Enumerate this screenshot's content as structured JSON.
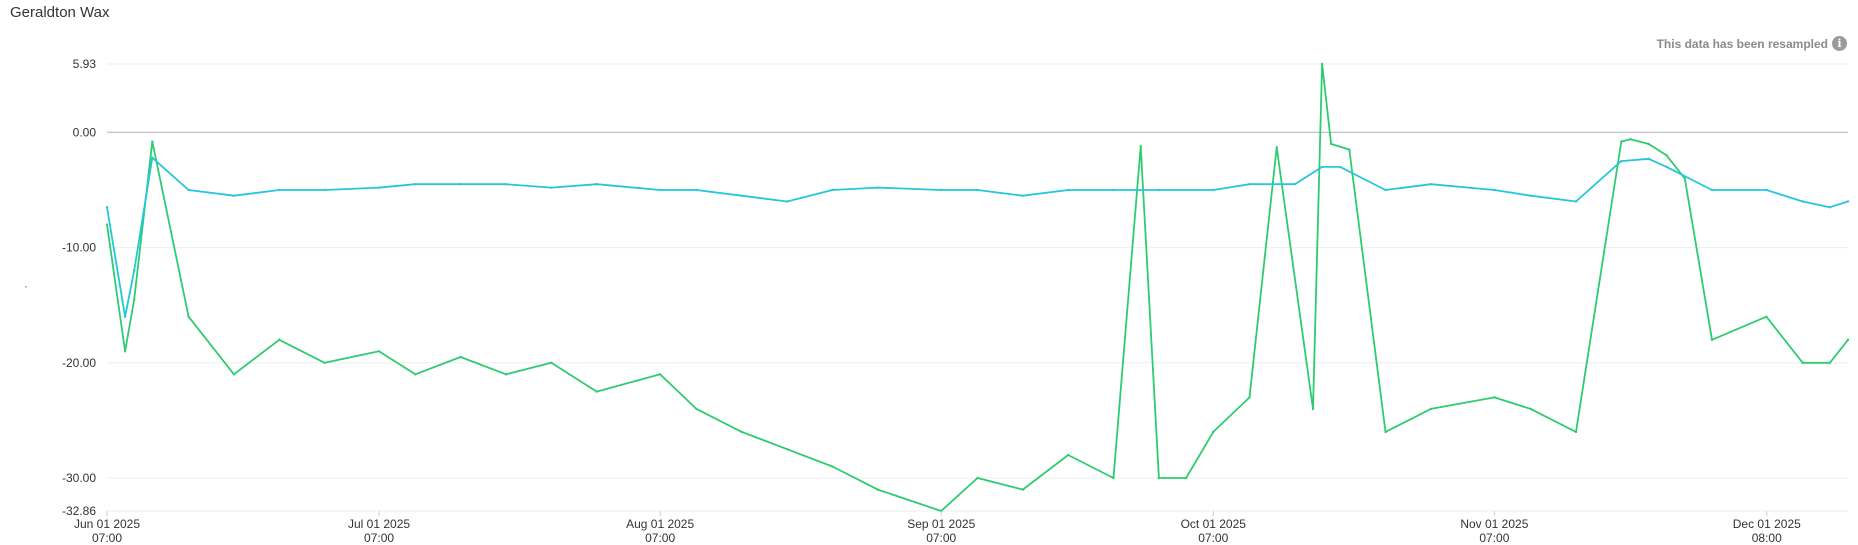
{
  "title": "Geraldton Wax",
  "resample_note": "This data has been resampled",
  "icons": {
    "info": "info-icon"
  },
  "colors": {
    "series_green": "#2ecc71",
    "series_cyan": "#26c6da",
    "zero_line": "#c8c8c8",
    "grid": "#eeeeee"
  },
  "chart_data": {
    "type": "line",
    "title": "Geraldton Wax",
    "xlabel": "",
    "ylabel": "",
    "x_range": [
      "2025-06-01T07:00",
      "2025-12-10T07:00"
    ],
    "ylim": [
      -32.86,
      5.93
    ],
    "y_ticks": [
      "5.93",
      "0.00",
      "-10.00",
      "-20.00",
      "-30.00",
      "-32.86"
    ],
    "x_ticks": [
      {
        "date": "Jun 01 2025",
        "time": "07:00"
      },
      {
        "date": "Jul 01 2025",
        "time": "07:00"
      },
      {
        "date": "Aug 01 2025",
        "time": "07:00"
      },
      {
        "date": "Sep 01 2025",
        "time": "07:00"
      },
      {
        "date": "Oct 01 2025",
        "time": "07:00"
      },
      {
        "date": "Nov 01 2025",
        "time": "07:00"
      },
      {
        "date": "Dec 01 2025",
        "time": "08:00"
      }
    ],
    "grid": true,
    "series": [
      {
        "color": "#2ecc71",
        "x": [
          "2025-06-01",
          "2025-06-03",
          "2025-06-04",
          "2025-06-06",
          "2025-06-10",
          "2025-06-15",
          "2025-06-20",
          "2025-06-25",
          "2025-07-01",
          "2025-07-05",
          "2025-07-10",
          "2025-07-15",
          "2025-07-20",
          "2025-07-25",
          "2025-08-01",
          "2025-08-05",
          "2025-08-10",
          "2025-08-15",
          "2025-08-20",
          "2025-08-25",
          "2025-09-01",
          "2025-09-05",
          "2025-09-10",
          "2025-09-15",
          "2025-09-20",
          "2025-09-23",
          "2025-09-25",
          "2025-09-28",
          "2025-10-01",
          "2025-10-05",
          "2025-10-08",
          "2025-10-12",
          "2025-10-13",
          "2025-10-14",
          "2025-10-16",
          "2025-10-20",
          "2025-10-25",
          "2025-11-01",
          "2025-11-05",
          "2025-11-10",
          "2025-11-15",
          "2025-11-16",
          "2025-11-18",
          "2025-11-20",
          "2025-11-22",
          "2025-11-25",
          "2025-12-01",
          "2025-12-05",
          "2025-12-08",
          "2025-12-10"
        ],
        "values": [
          -8.0,
          -19.0,
          -14.5,
          -0.8,
          -16.0,
          -21.0,
          -18.0,
          -20.0,
          -19.0,
          -21.0,
          -19.5,
          -21.0,
          -20.0,
          -22.5,
          -21.0,
          -24.0,
          -26.0,
          -27.5,
          -29.0,
          -31.0,
          -32.86,
          -30.0,
          -31.0,
          -28.0,
          -30.0,
          -1.2,
          -30.0,
          -30.0,
          -26.0,
          -23.0,
          -1.3,
          -24.0,
          5.93,
          -1.0,
          -1.5,
          -26.0,
          -24.0,
          -23.0,
          -24.0,
          -26.0,
          -0.8,
          -0.6,
          -1.0,
          -2.0,
          -4.0,
          -18.0,
          -16.0,
          -20.0,
          -20.0,
          -18.0
        ]
      },
      {
        "color": "#26c6da",
        "x": [
          "2025-06-01",
          "2025-06-03",
          "2025-06-04",
          "2025-06-06",
          "2025-06-10",
          "2025-06-15",
          "2025-06-20",
          "2025-06-25",
          "2025-07-01",
          "2025-07-05",
          "2025-07-10",
          "2025-07-15",
          "2025-07-20",
          "2025-07-25",
          "2025-08-01",
          "2025-08-05",
          "2025-08-10",
          "2025-08-15",
          "2025-08-20",
          "2025-08-25",
          "2025-09-01",
          "2025-09-05",
          "2025-09-10",
          "2025-09-15",
          "2025-09-20",
          "2025-09-25",
          "2025-10-01",
          "2025-10-05",
          "2025-10-10",
          "2025-10-13",
          "2025-10-15",
          "2025-10-20",
          "2025-10-25",
          "2025-11-01",
          "2025-11-05",
          "2025-11-10",
          "2025-11-15",
          "2025-11-18",
          "2025-11-20",
          "2025-11-25",
          "2025-12-01",
          "2025-12-05",
          "2025-12-08",
          "2025-12-10"
        ],
        "values": [
          -6.5,
          -16.0,
          -12.0,
          -2.2,
          -5.0,
          -5.5,
          -5.0,
          -5.0,
          -4.8,
          -4.5,
          -4.5,
          -4.5,
          -4.8,
          -4.5,
          -5.0,
          -5.0,
          -5.5,
          -6.0,
          -5.0,
          -4.8,
          -5.0,
          -5.0,
          -5.5,
          -5.0,
          -5.0,
          -5.0,
          -5.0,
          -4.5,
          -4.5,
          -3.0,
          -3.0,
          -5.0,
          -4.5,
          -5.0,
          -5.5,
          -6.0,
          -2.5,
          -2.3,
          -3.0,
          -5.0,
          -5.0,
          -6.0,
          -6.5,
          -6.0
        ]
      }
    ]
  }
}
